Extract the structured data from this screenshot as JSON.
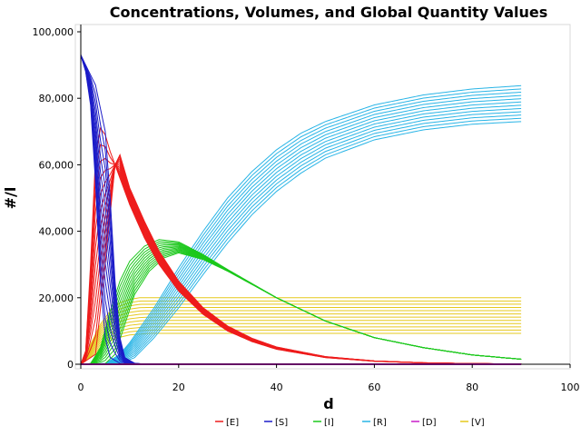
{
  "chart_data": {
    "type": "line",
    "title": "Concentrations, Volumes, and Global Quantity Values",
    "xlabel": "d",
    "ylabel": "#/l",
    "xlim": [
      0,
      100
    ],
    "ylim": [
      0,
      100000
    ],
    "x_ticks": [
      0,
      20,
      40,
      60,
      80,
      100
    ],
    "x_tick_labels": [
      "0",
      "20",
      "40",
      "60",
      "80",
      "100"
    ],
    "y_ticks": [
      0,
      20000,
      40000,
      60000,
      80000,
      100000
    ],
    "y_tick_labels": [
      "0",
      "20,000",
      "40,000",
      "60,000",
      "80,000",
      "100,000"
    ],
    "grid": false,
    "legend_position": "bottom",
    "runs_per_series": 12,
    "series": [
      {
        "name": "[E]",
        "color": "#ee1c1c",
        "runs": [
          [
            [
              0,
              0
            ],
            [
              1,
              4000
            ],
            [
              2,
              30000
            ],
            [
              3,
              62000
            ],
            [
              4,
              71000
            ],
            [
              5,
              69000
            ],
            [
              6,
              64000
            ],
            [
              8,
              56000
            ],
            [
              10,
              48000
            ],
            [
              13,
              38000
            ],
            [
              16,
              30000
            ],
            [
              20,
              22000
            ],
            [
              25,
              15000
            ],
            [
              30,
              10000
            ],
            [
              35,
              6800
            ],
            [
              40,
              4500
            ],
            [
              50,
              2000
            ],
            [
              60,
              900
            ],
            [
              70,
              400
            ],
            [
              80,
              180
            ],
            [
              90,
              80
            ]
          ],
          [
            [
              0,
              0
            ],
            [
              3,
              3000
            ],
            [
              5,
              30000
            ],
            [
              7,
              60000
            ],
            [
              8,
              63000
            ],
            [
              9,
              58000
            ],
            [
              10,
              53000
            ],
            [
              13,
              43000
            ],
            [
              16,
              34000
            ],
            [
              20,
              25000
            ],
            [
              25,
              17000
            ],
            [
              30,
              11500
            ],
            [
              35,
              7800
            ],
            [
              40,
              5200
            ],
            [
              50,
              2300
            ],
            [
              60,
              1000
            ],
            [
              70,
              450
            ],
            [
              80,
              200
            ],
            [
              90,
              90
            ]
          ]
        ]
      },
      {
        "name": "[S]",
        "color": "#1c1cc8",
        "runs": [
          [
            [
              0,
              93000
            ],
            [
              1,
              88000
            ],
            [
              2,
              78000
            ],
            [
              3,
              55000
            ],
            [
              4,
              25000
            ],
            [
              5,
              8000
            ],
            [
              6,
              2000
            ],
            [
              8,
              300
            ],
            [
              10,
              50
            ],
            [
              15,
              0
            ],
            [
              90,
              0
            ]
          ],
          [
            [
              0,
              93000
            ],
            [
              1,
              90000
            ],
            [
              3,
              84000
            ],
            [
              5,
              70000
            ],
            [
              6,
              50000
            ],
            [
              7,
              25000
            ],
            [
              8,
              8000
            ],
            [
              9,
              2000
            ],
            [
              11,
              300
            ],
            [
              13,
              50
            ],
            [
              16,
              0
            ],
            [
              90,
              0
            ]
          ]
        ]
      },
      {
        "name": "[I]",
        "color": "#1cc81c",
        "runs": [
          [
            [
              0,
              0
            ],
            [
              2,
              200
            ],
            [
              4,
              5000
            ],
            [
              6,
              16000
            ],
            [
              8,
              25000
            ],
            [
              10,
              31000
            ],
            [
              13,
              35500
            ],
            [
              16,
              37500
            ],
            [
              20,
              36800
            ],
            [
              25,
              33000
            ],
            [
              30,
              28500
            ],
            [
              40,
              20000
            ],
            [
              50,
              13000
            ],
            [
              60,
              8000
            ],
            [
              70,
              5000
            ],
            [
              80,
              2800
            ],
            [
              90,
              1500
            ]
          ],
          [
            [
              0,
              0
            ],
            [
              5,
              200
            ],
            [
              7,
              3000
            ],
            [
              9,
              12000
            ],
            [
              11,
              21000
            ],
            [
              14,
              28000
            ],
            [
              17,
              32000
            ],
            [
              20,
              33500
            ],
            [
              25,
              31500
            ],
            [
              30,
              28000
            ],
            [
              40,
              20000
            ],
            [
              50,
              13000
            ],
            [
              60,
              8000
            ],
            [
              70,
              5000
            ],
            [
              80,
              2800
            ],
            [
              90,
              1500
            ]
          ]
        ]
      },
      {
        "name": "[R]",
        "color": "#28b4e6",
        "runs": [
          [
            [
              0,
              0
            ],
            [
              5,
              200
            ],
            [
              8,
              3000
            ],
            [
              10,
              6500
            ],
            [
              15,
              17000
            ],
            [
              20,
              29000
            ],
            [
              25,
              40000
            ],
            [
              30,
              50000
            ],
            [
              35,
              58000
            ],
            [
              40,
              64500
            ],
            [
              45,
              69500
            ],
            [
              50,
              73000
            ],
            [
              60,
              78000
            ],
            [
              70,
              81000
            ],
            [
              80,
              82800
            ],
            [
              90,
              83800
            ]
          ],
          [
            [
              0,
              0
            ],
            [
              8,
              200
            ],
            [
              11,
              2000
            ],
            [
              15,
              8000
            ],
            [
              20,
              17000
            ],
            [
              25,
              27000
            ],
            [
              30,
              36500
            ],
            [
              35,
              45000
            ],
            [
              40,
              52000
            ],
            [
              45,
              57500
            ],
            [
              50,
              62000
            ],
            [
              60,
              67500
            ],
            [
              70,
              70500
            ],
            [
              80,
              72200
            ],
            [
              90,
              73000
            ]
          ]
        ]
      },
      {
        "name": "[D]",
        "color": "#c81cc8",
        "runs": [
          [
            [
              0,
              0
            ],
            [
              90,
              0
            ]
          ]
        ]
      },
      {
        "name": "[V]",
        "color": "#e6c81c",
        "runs": [
          [
            [
              0,
              0
            ],
            [
              2,
              6000
            ],
            [
              4,
              12000
            ],
            [
              6,
              16000
            ],
            [
              8,
              18500
            ],
            [
              10,
              19500
            ],
            [
              12,
              20000
            ],
            [
              90,
              20000
            ]
          ],
          [
            [
              0,
              0
            ],
            [
              3,
              3000
            ],
            [
              5,
              6000
            ],
            [
              7,
              7800
            ],
            [
              10,
              8800
            ],
            [
              13,
              9200
            ],
            [
              15,
              9300
            ],
            [
              90,
              9300
            ]
          ]
        ]
      }
    ]
  }
}
